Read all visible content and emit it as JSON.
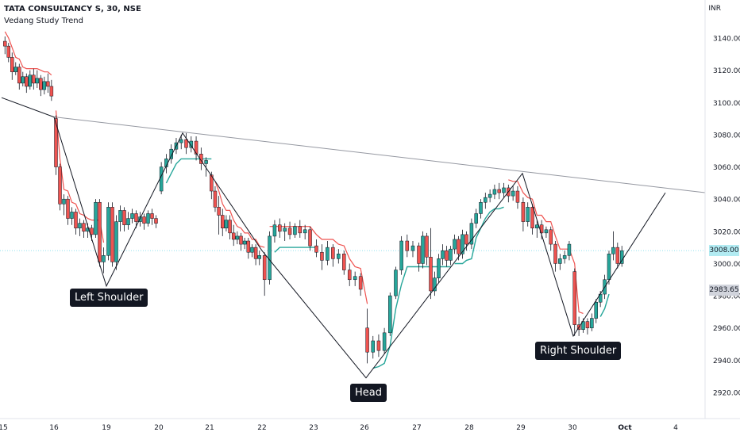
{
  "header": {
    "title": "TATA CONSULTANCY S, 30, NSE",
    "indicator": "Vedang Study Trend",
    "currency": "INR"
  },
  "chart_data": {
    "type": "candlestick",
    "ylim": [
      2905,
      3155
    ],
    "y_ticks": [
      2920,
      2940,
      2960,
      2980,
      3000,
      3020,
      3040,
      3060,
      3080,
      3100,
      3120,
      3140
    ],
    "x_ticks": [
      "15",
      "16",
      "19",
      "20",
      "21",
      "22",
      "23",
      "26",
      "27",
      "28",
      "29",
      "30",
      "Oct",
      "4"
    ],
    "price_markers": [
      {
        "value": 3008.0,
        "label": "3008.00",
        "bg": "#b2ebf2"
      },
      {
        "value": 2983.65,
        "label": "2983.65",
        "bg": "#d1d4dc"
      }
    ],
    "annotations": [
      "Left Shoulder",
      "Head",
      "Right Shoulder"
    ],
    "neckline": [
      {
        "x": "16",
        "y": 3091
      },
      {
        "x": "29",
        "y": 3056
      },
      {
        "x": "4",
        "y": 3044
      }
    ],
    "pattern_line": [
      [
        "15",
        3103
      ],
      [
        "16",
        3091
      ],
      [
        "19",
        2986
      ],
      [
        "20",
        3081
      ],
      [
        "22",
        3008
      ],
      [
        "26",
        2929
      ],
      [
        "29",
        3056
      ],
      [
        "30",
        2955
      ],
      [
        "4",
        3044
      ]
    ],
    "colors": {
      "up": "#26a69a",
      "down": "#ef5350",
      "trend_up": "#26a69a",
      "trend_down": "#ef5350",
      "neckline": "#9598a1",
      "pattern": "#131722"
    },
    "candles": [
      {
        "x": "15",
        "o": 3138,
        "h": 3141,
        "c": 3135,
        "l": 3130
      },
      {
        "x": "15",
        "o": 3135,
        "h": 3137,
        "c": 3128,
        "l": 3125
      },
      {
        "x": "15",
        "o": 3128,
        "h": 3131,
        "c": 3119,
        "l": 3114
      },
      {
        "x": "15",
        "o": 3119,
        "h": 3125,
        "c": 3122,
        "l": 3117
      },
      {
        "x": "15",
        "o": 3122,
        "h": 3124,
        "c": 3112,
        "l": 3108
      },
      {
        "x": "15",
        "o": 3112,
        "h": 3119,
        "c": 3116,
        "l": 3110
      },
      {
        "x": "15",
        "o": 3116,
        "h": 3118,
        "c": 3110,
        "l": 3106
      },
      {
        "x": "15",
        "o": 3110,
        "h": 3120,
        "c": 3117,
        "l": 3108
      },
      {
        "x": "15",
        "o": 3117,
        "h": 3121,
        "c": 3112,
        "l": 3108
      },
      {
        "x": "15",
        "o": 3112,
        "h": 3120,
        "c": 3115,
        "l": 3109
      },
      {
        "x": "15",
        "o": 3115,
        "h": 3117,
        "c": 3108,
        "l": 3104
      },
      {
        "x": "15",
        "o": 3108,
        "h": 3116,
        "c": 3113,
        "l": 3105
      },
      {
        "x": "15",
        "o": 3113,
        "h": 3118,
        "c": 3110,
        "l": 3106
      },
      {
        "x": "15",
        "o": 3110,
        "h": 3114,
        "c": 3104,
        "l": 3101
      },
      {
        "x": "16",
        "o": 3090,
        "h": 3092,
        "c": 3060,
        "l": 3055
      },
      {
        "x": "16",
        "o": 3060,
        "h": 3062,
        "c": 3037,
        "l": 3033
      },
      {
        "x": "16",
        "o": 3037,
        "h": 3043,
        "c": 3040,
        "l": 3030
      },
      {
        "x": "16",
        "o": 3040,
        "h": 3042,
        "c": 3028,
        "l": 3024
      },
      {
        "x": "16",
        "o": 3028,
        "h": 3035,
        "c": 3032,
        "l": 3024
      },
      {
        "x": "16",
        "o": 3032,
        "h": 3034,
        "c": 3022,
        "l": 3018
      },
      {
        "x": "16",
        "o": 3022,
        "h": 3028,
        "c": 3025,
        "l": 3017
      },
      {
        "x": "16",
        "o": 3025,
        "h": 3027,
        "c": 3020,
        "l": 3016
      },
      {
        "x": "16",
        "o": 3020,
        "h": 3025,
        "c": 3022,
        "l": 3016
      },
      {
        "x": "16",
        "o": 3022,
        "h": 3024,
        "c": 3018,
        "l": 3014
      },
      {
        "x": "16",
        "o": 3018,
        "h": 3040,
        "c": 3038,
        "l": 3016
      },
      {
        "x": "16",
        "o": 3038,
        "h": 3040,
        "c": 3001,
        "l": 2998
      },
      {
        "x": "16",
        "o": 3001,
        "h": 3010,
        "c": 3005,
        "l": 2994
      },
      {
        "x": "19",
        "o": 3005,
        "h": 3038,
        "c": 3035,
        "l": 3002
      },
      {
        "x": "19",
        "o": 3035,
        "h": 3038,
        "c": 3001,
        "l": 2998
      },
      {
        "x": "19",
        "o": 3001,
        "h": 3030,
        "c": 3026,
        "l": 2996
      },
      {
        "x": "19",
        "o": 3026,
        "h": 3036,
        "c": 3033,
        "l": 3020
      },
      {
        "x": "19",
        "o": 3033,
        "h": 3035,
        "c": 3024,
        "l": 3020
      },
      {
        "x": "19",
        "o": 3024,
        "h": 3032,
        "c": 3028,
        "l": 3021
      },
      {
        "x": "19",
        "o": 3028,
        "h": 3034,
        "c": 3031,
        "l": 3025
      },
      {
        "x": "19",
        "o": 3031,
        "h": 3033,
        "c": 3026,
        "l": 3022
      },
      {
        "x": "19",
        "o": 3026,
        "h": 3032,
        "c": 3029,
        "l": 3023
      },
      {
        "x": "19",
        "o": 3029,
        "h": 3031,
        "c": 3025,
        "l": 3021
      },
      {
        "x": "19",
        "o": 3025,
        "h": 3033,
        "c": 3031,
        "l": 3023
      },
      {
        "x": "19",
        "o": 3031,
        "h": 3034,
        "c": 3028,
        "l": 3024
      },
      {
        "x": "19",
        "o": 3028,
        "h": 3030,
        "c": 3025,
        "l": 3022
      },
      {
        "x": "20",
        "o": 3045,
        "h": 3063,
        "c": 3060,
        "l": 3043
      },
      {
        "x": "20",
        "o": 3060,
        "h": 3068,
        "c": 3065,
        "l": 3056
      },
      {
        "x": "20",
        "o": 3065,
        "h": 3074,
        "c": 3071,
        "l": 3062
      },
      {
        "x": "20",
        "o": 3071,
        "h": 3078,
        "c": 3075,
        "l": 3068
      },
      {
        "x": "20",
        "o": 3075,
        "h": 3080,
        "c": 3077,
        "l": 3071
      },
      {
        "x": "20",
        "o": 3077,
        "h": 3081,
        "c": 3072,
        "l": 3068
      },
      {
        "x": "20",
        "o": 3072,
        "h": 3079,
        "c": 3076,
        "l": 3069
      },
      {
        "x": "20",
        "o": 3076,
        "h": 3079,
        "c": 3068,
        "l": 3064
      },
      {
        "x": "20",
        "o": 3068,
        "h": 3072,
        "c": 3062,
        "l": 3058
      },
      {
        "x": "20",
        "o": 3062,
        "h": 3066,
        "c": 3064,
        "l": 3054
      },
      {
        "x": "21",
        "o": 3055,
        "h": 3057,
        "c": 3045,
        "l": 3040
      },
      {
        "x": "21",
        "o": 3045,
        "h": 3048,
        "c": 3035,
        "l": 3032
      },
      {
        "x": "21",
        "o": 3035,
        "h": 3042,
        "c": 3030,
        "l": 3018
      },
      {
        "x": "21",
        "o": 3030,
        "h": 3034,
        "c": 3022,
        "l": 3017
      },
      {
        "x": "21",
        "o": 3022,
        "h": 3030,
        "c": 3027,
        "l": 3020
      },
      {
        "x": "21",
        "o": 3027,
        "h": 3030,
        "c": 3019,
        "l": 3015
      },
      {
        "x": "21",
        "o": 3019,
        "h": 3024,
        "c": 3015,
        "l": 3011
      },
      {
        "x": "21",
        "o": 3015,
        "h": 3020,
        "c": 3017,
        "l": 3012
      },
      {
        "x": "21",
        "o": 3017,
        "h": 3019,
        "c": 3012,
        "l": 3008
      },
      {
        "x": "21",
        "o": 3012,
        "h": 3016,
        "c": 3014,
        "l": 3009
      },
      {
        "x": "21",
        "o": 3014,
        "h": 3016,
        "c": 3007,
        "l": 3003
      },
      {
        "x": "21",
        "o": 3007,
        "h": 3012,
        "c": 3010,
        "l": 3004
      },
      {
        "x": "21",
        "o": 3010,
        "h": 3012,
        "c": 3003,
        "l": 2999
      },
      {
        "x": "21",
        "o": 3003,
        "h": 3008,
        "c": 3005,
        "l": 2999
      },
      {
        "x": "22",
        "o": 3005,
        "h": 3007,
        "c": 2990,
        "l": 2980
      },
      {
        "x": "22",
        "o": 2990,
        "h": 3020,
        "c": 3017,
        "l": 2987
      },
      {
        "x": "22",
        "o": 3017,
        "h": 3027,
        "c": 3024,
        "l": 3013
      },
      {
        "x": "22",
        "o": 3024,
        "h": 3028,
        "c": 3020,
        "l": 3016
      },
      {
        "x": "22",
        "o": 3020,
        "h": 3025,
        "c": 3022,
        "l": 3014
      },
      {
        "x": "22",
        "o": 3022,
        "h": 3026,
        "c": 3018,
        "l": 3015
      },
      {
        "x": "22",
        "o": 3018,
        "h": 3025,
        "c": 3023,
        "l": 3016
      },
      {
        "x": "22",
        "o": 3023,
        "h": 3027,
        "c": 3019,
        "l": 3016
      },
      {
        "x": "22",
        "o": 3019,
        "h": 3024,
        "c": 3021,
        "l": 3015
      },
      {
        "x": "22",
        "o": 3021,
        "h": 3023,
        "c": 3011,
        "l": 3008
      },
      {
        "x": "23",
        "o": 3011,
        "h": 3015,
        "c": 3007,
        "l": 3004
      },
      {
        "x": "23",
        "o": 3007,
        "h": 3012,
        "c": 3002,
        "l": 2996
      },
      {
        "x": "23",
        "o": 3002,
        "h": 3014,
        "c": 3010,
        "l": 2999
      },
      {
        "x": "23",
        "o": 3010,
        "h": 3012,
        "c": 3003,
        "l": 2998
      },
      {
        "x": "23",
        "o": 3003,
        "h": 3009,
        "c": 3006,
        "l": 3000
      },
      {
        "x": "23",
        "o": 3006,
        "h": 3008,
        "c": 2996,
        "l": 2993
      },
      {
        "x": "23",
        "o": 2996,
        "h": 3000,
        "c": 2990,
        "l": 2986
      },
      {
        "x": "23",
        "o": 2990,
        "h": 2995,
        "c": 2992,
        "l": 2986
      },
      {
        "x": "23",
        "o": 2992,
        "h": 2994,
        "c": 2984,
        "l": 2980
      },
      {
        "x": "26",
        "o": 2960,
        "h": 2972,
        "c": 2945,
        "l": 2938
      },
      {
        "x": "26",
        "o": 2945,
        "h": 2955,
        "c": 2952,
        "l": 2941
      },
      {
        "x": "26",
        "o": 2952,
        "h": 2956,
        "c": 2946,
        "l": 2942
      },
      {
        "x": "26",
        "o": 2946,
        "h": 2960,
        "c": 2957,
        "l": 2944
      },
      {
        "x": "26",
        "o": 2957,
        "h": 2982,
        "c": 2980,
        "l": 2955
      },
      {
        "x": "26",
        "o": 2980,
        "h": 2998,
        "c": 2996,
        "l": 2978
      },
      {
        "x": "26",
        "o": 2996,
        "h": 3017,
        "c": 3014,
        "l": 2993
      },
      {
        "x": "26",
        "o": 3014,
        "h": 3018,
        "c": 3008,
        "l": 3004
      },
      {
        "x": "26",
        "o": 3008,
        "h": 3014,
        "c": 3011,
        "l": 3004
      },
      {
        "x": "27",
        "o": 3011,
        "h": 3013,
        "c": 3000,
        "l": 2995
      },
      {
        "x": "27",
        "o": 3000,
        "h": 3020,
        "c": 3017,
        "l": 2997
      },
      {
        "x": "27",
        "o": 3017,
        "h": 3019,
        "c": 3004,
        "l": 2999
      },
      {
        "x": "27",
        "o": 3004,
        "h": 3022,
        "c": 2983,
        "l": 2978
      },
      {
        "x": "27",
        "o": 2983,
        "h": 2995,
        "c": 2991,
        "l": 2980
      },
      {
        "x": "27",
        "o": 2991,
        "h": 3006,
        "c": 3003,
        "l": 2988
      },
      {
        "x": "27",
        "o": 3003,
        "h": 3012,
        "c": 3008,
        "l": 2999
      },
      {
        "x": "27",
        "o": 3008,
        "h": 3011,
        "c": 3002,
        "l": 2998
      },
      {
        "x": "27",
        "o": 3002,
        "h": 3011,
        "c": 3009,
        "l": 2999
      },
      {
        "x": "27",
        "o": 3009,
        "h": 3018,
        "c": 3015,
        "l": 3006
      },
      {
        "x": "27",
        "o": 3015,
        "h": 3017,
        "c": 3006,
        "l": 3002
      },
      {
        "x": "27",
        "o": 3006,
        "h": 3021,
        "c": 3018,
        "l": 3003
      },
      {
        "x": "27",
        "o": 3018,
        "h": 3020,
        "c": 3012,
        "l": 3008
      },
      {
        "x": "28",
        "o": 3012,
        "h": 3028,
        "c": 3025,
        "l": 3009
      },
      {
        "x": "28",
        "o": 3025,
        "h": 3034,
        "c": 3031,
        "l": 3022
      },
      {
        "x": "28",
        "o": 3031,
        "h": 3040,
        "c": 3038,
        "l": 3028
      },
      {
        "x": "28",
        "o": 3038,
        "h": 3044,
        "c": 3041,
        "l": 3034
      },
      {
        "x": "28",
        "o": 3041,
        "h": 3046,
        "c": 3043,
        "l": 3038
      },
      {
        "x": "28",
        "o": 3043,
        "h": 3049,
        "c": 3046,
        "l": 3040
      },
      {
        "x": "28",
        "o": 3046,
        "h": 3050,
        "c": 3044,
        "l": 3040
      },
      {
        "x": "28",
        "o": 3044,
        "h": 3050,
        "c": 3047,
        "l": 3041
      },
      {
        "x": "28",
        "o": 3047,
        "h": 3049,
        "c": 3042,
        "l": 3038
      },
      {
        "x": "28",
        "o": 3042,
        "h": 3048,
        "c": 3045,
        "l": 3039
      },
      {
        "x": "28",
        "o": 3045,
        "h": 3048,
        "c": 3038,
        "l": 3034
      },
      {
        "x": "29",
        "o": 3038,
        "h": 3041,
        "c": 3026,
        "l": 3020
      },
      {
        "x": "29",
        "o": 3026,
        "h": 3038,
        "c": 3035,
        "l": 3023
      },
      {
        "x": "29",
        "o": 3035,
        "h": 3037,
        "c": 3022,
        "l": 3018
      },
      {
        "x": "29",
        "o": 3022,
        "h": 3027,
        "c": 3024,
        "l": 3016
      },
      {
        "x": "29",
        "o": 3024,
        "h": 3027,
        "c": 3019,
        "l": 3015
      },
      {
        "x": "29",
        "o": 3019,
        "h": 3023,
        "c": 3021,
        "l": 3016
      },
      {
        "x": "29",
        "o": 3021,
        "h": 3023,
        "c": 3012,
        "l": 3008
      },
      {
        "x": "29",
        "o": 3012,
        "h": 3014,
        "c": 3000,
        "l": 2995
      },
      {
        "x": "29",
        "o": 3000,
        "h": 3006,
        "c": 3003,
        "l": 2996
      },
      {
        "x": "29",
        "o": 3003,
        "h": 3008,
        "c": 3005,
        "l": 3000
      },
      {
        "x": "29",
        "o": 3005,
        "h": 3014,
        "c": 3012,
        "l": 3002
      },
      {
        "x": "30",
        "o": 2995,
        "h": 2997,
        "c": 2962,
        "l": 2955
      },
      {
        "x": "30",
        "o": 2962,
        "h": 2967,
        "c": 2959,
        "l": 2955
      },
      {
        "x": "30",
        "o": 2959,
        "h": 2966,
        "c": 2964,
        "l": 2957
      },
      {
        "x": "30",
        "o": 2964,
        "h": 2966,
        "c": 2960,
        "l": 2956
      },
      {
        "x": "30",
        "o": 2960,
        "h": 2969,
        "c": 2966,
        "l": 2958
      },
      {
        "x": "30",
        "o": 2966,
        "h": 2978,
        "c": 2976,
        "l": 2963
      },
      {
        "x": "30",
        "o": 2976,
        "h": 2983,
        "c": 2981,
        "l": 2973
      },
      {
        "x": "30",
        "o": 2981,
        "h": 2993,
        "c": 2990,
        "l": 2978
      },
      {
        "x": "30",
        "o": 2990,
        "h": 3008,
        "c": 3006,
        "l": 2987
      },
      {
        "x": "30",
        "o": 3006,
        "h": 3020,
        "c": 3010,
        "l": 3002
      },
      {
        "x": "30",
        "o": 3010,
        "h": 3013,
        "c": 3000,
        "l": 2997
      },
      {
        "x": "30",
        "o": 3000,
        "h": 3011,
        "c": 3008,
        "l": 2998
      }
    ]
  },
  "annotation_labels": {
    "left_shoulder": "Left Shoulder",
    "head": "Head",
    "right_shoulder": "Right Shoulder"
  }
}
